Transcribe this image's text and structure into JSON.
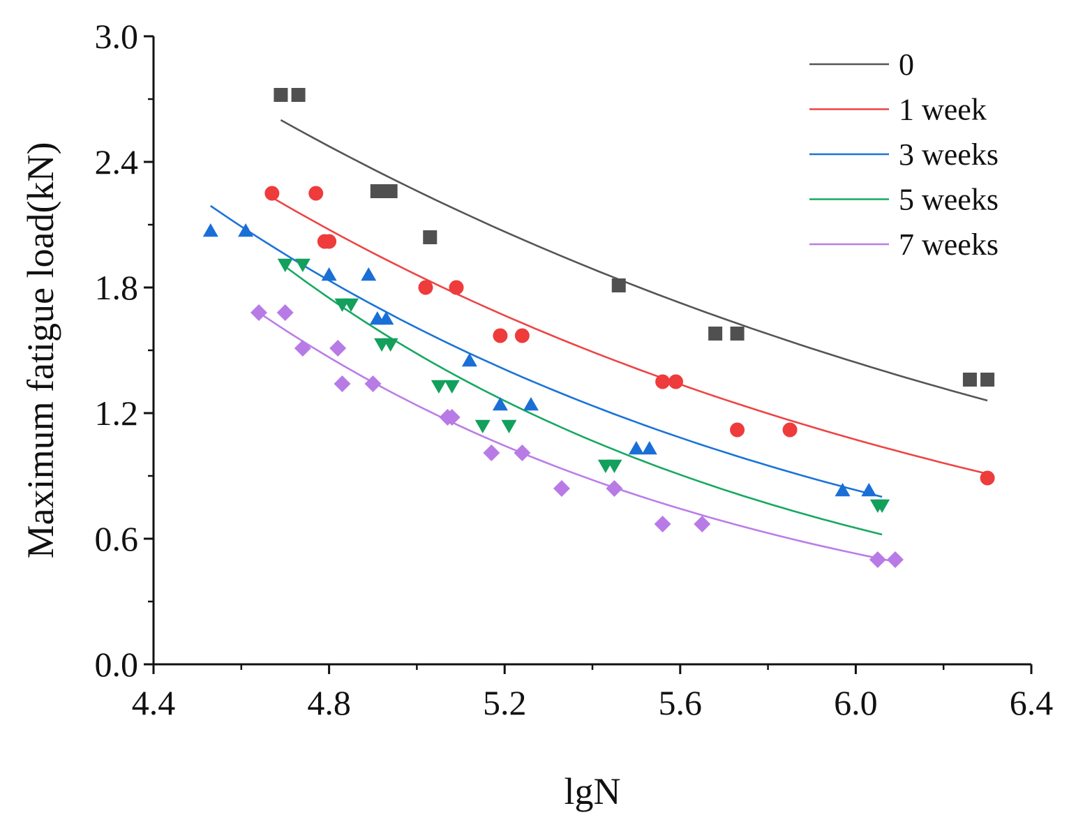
{
  "chart_data": {
    "type": "scatter",
    "title": "",
    "xlabel": "lgN",
    "ylabel": "Maximum fatigue load(kN)",
    "xlim": [
      4.4,
      6.4
    ],
    "ylim": [
      0.0,
      3.0
    ],
    "xticks": [
      "4.4",
      "4.8",
      "5.2",
      "5.6",
      "6.0",
      "6.4"
    ],
    "yticks": [
      "0.0",
      "0.6",
      "1.2",
      "1.8",
      "2.4",
      "3.0"
    ],
    "grid": false,
    "legend_position": "top-right",
    "series": [
      {
        "name": "0",
        "color": "#505050",
        "line_color": "#555555",
        "marker": "square",
        "points": [
          [
            4.69,
            2.72
          ],
          [
            4.73,
            2.72
          ],
          [
            4.91,
            2.26
          ],
          [
            4.94,
            2.26
          ],
          [
            5.03,
            2.04
          ],
          [
            5.46,
            1.81
          ],
          [
            5.68,
            1.58
          ],
          [
            5.73,
            1.58
          ],
          [
            6.26,
            1.36
          ],
          [
            6.3,
            1.36
          ]
        ],
        "fit": {
          "x_start": 4.69,
          "x_end": 6.3,
          "y_start": 2.6,
          "y_end": 1.26
        }
      },
      {
        "name": "1 week",
        "color": "#ee3b3b",
        "line_color": "#ee4444",
        "marker": "circle",
        "points": [
          [
            4.67,
            2.25
          ],
          [
            4.77,
            2.25
          ],
          [
            4.79,
            2.02
          ],
          [
            4.8,
            2.02
          ],
          [
            5.02,
            1.8
          ],
          [
            5.09,
            1.8
          ],
          [
            5.19,
            1.57
          ],
          [
            5.24,
            1.57
          ],
          [
            5.56,
            1.35
          ],
          [
            5.59,
            1.35
          ],
          [
            5.73,
            1.12
          ],
          [
            5.85,
            1.12
          ],
          [
            6.3,
            0.89
          ]
        ],
        "fit": {
          "x_start": 4.67,
          "x_end": 6.3,
          "y_start": 2.23,
          "y_end": 0.91
        }
      },
      {
        "name": "3 weeks",
        "color": "#1a6fd6",
        "line_color": "#1a73d9",
        "marker": "triangle-up",
        "points": [
          [
            4.53,
            2.07
          ],
          [
            4.61,
            2.07
          ],
          [
            4.8,
            1.86
          ],
          [
            4.89,
            1.86
          ],
          [
            4.91,
            1.65
          ],
          [
            4.93,
            1.65
          ],
          [
            5.12,
            1.45
          ],
          [
            5.19,
            1.24
          ],
          [
            5.26,
            1.24
          ],
          [
            5.5,
            1.03
          ],
          [
            5.53,
            1.03
          ],
          [
            5.97,
            0.83
          ],
          [
            6.03,
            0.83
          ]
        ],
        "fit": {
          "x_start": 4.53,
          "x_end": 6.06,
          "y_start": 2.19,
          "y_end": 0.8
        }
      },
      {
        "name": "5 weeks",
        "color": "#12a05c",
        "line_color": "#16a862",
        "marker": "triangle-down",
        "points": [
          [
            4.7,
            1.91
          ],
          [
            4.74,
            1.91
          ],
          [
            4.83,
            1.72
          ],
          [
            4.85,
            1.72
          ],
          [
            4.92,
            1.53
          ],
          [
            4.94,
            1.53
          ],
          [
            5.05,
            1.33
          ],
          [
            5.08,
            1.33
          ],
          [
            5.15,
            1.14
          ],
          [
            5.21,
            1.14
          ],
          [
            5.43,
            0.95
          ],
          [
            5.45,
            0.95
          ],
          [
            6.05,
            0.76
          ],
          [
            6.06,
            0.76
          ]
        ],
        "fit": {
          "x_start": 4.7,
          "x_end": 6.06,
          "y_start": 1.9,
          "y_end": 0.62
        }
      },
      {
        "name": "7 weeks",
        "color": "#b87be6",
        "line_color": "#bb7de8",
        "marker": "diamond",
        "points": [
          [
            4.64,
            1.68
          ],
          [
            4.7,
            1.68
          ],
          [
            4.74,
            1.51
          ],
          [
            4.82,
            1.51
          ],
          [
            4.83,
            1.34
          ],
          [
            4.9,
            1.34
          ],
          [
            5.07,
            1.18
          ],
          [
            5.08,
            1.18
          ],
          [
            5.17,
            1.01
          ],
          [
            5.24,
            1.01
          ],
          [
            5.33,
            0.84
          ],
          [
            5.45,
            0.84
          ],
          [
            5.56,
            0.67
          ],
          [
            5.65,
            0.67
          ],
          [
            6.05,
            0.5
          ],
          [
            6.09,
            0.5
          ]
        ],
        "fit": {
          "x_start": 4.64,
          "x_end": 6.09,
          "y_start": 1.68,
          "y_end": 0.49
        }
      }
    ]
  }
}
